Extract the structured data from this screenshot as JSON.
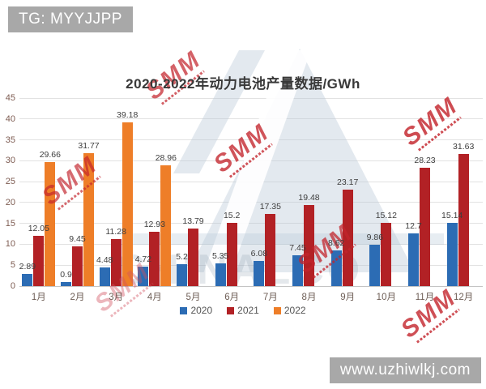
{
  "badges": {
    "top_left": "TG: MYYJJPP",
    "bottom_right": "www.uzhiwlkj.com"
  },
  "chart_data": {
    "type": "bar",
    "title": "2020-2022年动力电池产量数据/GWh",
    "categories": [
      "1月",
      "2月",
      "3月",
      "4月",
      "5月",
      "6月",
      "7月",
      "8月",
      "9月",
      "10月",
      "11月",
      "12月"
    ],
    "series": [
      {
        "name": "2020",
        "color": "#2c6cb4",
        "values": [
          2.89,
          0.9,
          4.48,
          4.72,
          5.2,
          5.35,
          6.08,
          7.45,
          8.62,
          9.86,
          12.7,
          15.14
        ]
      },
      {
        "name": "2021",
        "color": "#b22125",
        "values": [
          12.05,
          9.45,
          11.28,
          12.93,
          13.79,
          15.2,
          17.35,
          19.48,
          23.17,
          15.12,
          28.23,
          31.63
        ]
      },
      {
        "name": "2022",
        "color": "#ee7e28",
        "values": [
          29.66,
          31.77,
          39.18,
          28.96,
          null,
          null,
          null,
          null,
          null,
          null,
          null,
          null
        ]
      }
    ],
    "ylabel": "",
    "xlabel": "",
    "ylim": [
      0,
      45
    ],
    "ytick_step": 5,
    "grid": true,
    "legend_position": "bottom",
    "data_labels": true
  },
  "watermarks": {
    "smm_text": "SMM",
    "smm_color": "#c3242c",
    "logo_color": "#b5c6d6",
    "big_text": "CHINALCO"
  }
}
